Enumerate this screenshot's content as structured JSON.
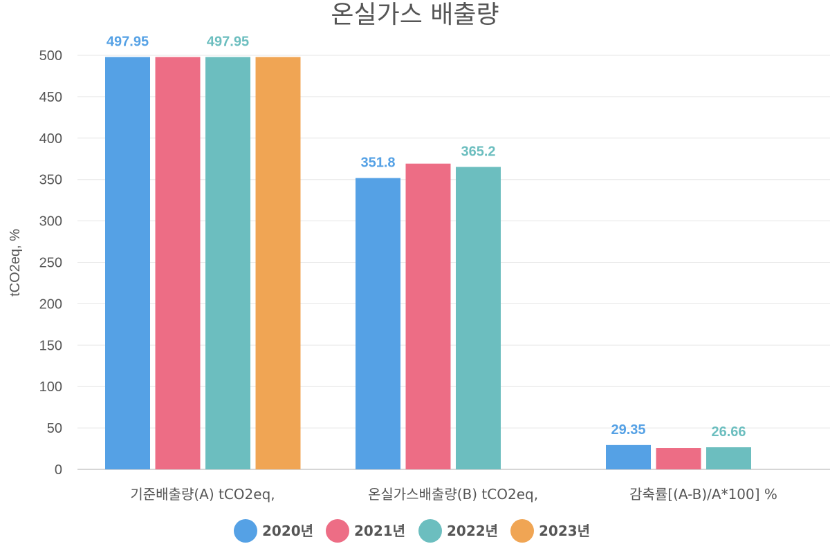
{
  "chart_data": {
    "type": "bar",
    "title": "온실가스 배출량",
    "ylabel": "tCO2eq, %",
    "xlabel": "",
    "ylim": [
      0,
      500
    ],
    "yticks": [
      0,
      50,
      100,
      150,
      200,
      250,
      300,
      350,
      400,
      450,
      500
    ],
    "grid": true,
    "legend_position": "bottom",
    "categories": [
      "기준배출량(A) tCO2eq,",
      "온실가스배출량(B) tCO2eq,",
      "감축률[(A-B)/A*100] %"
    ],
    "series": [
      {
        "name": "2020년",
        "color": "#55a1e5",
        "values": [
          497.95,
          351.8,
          29.35
        ],
        "labels": [
          "497.95",
          "351.8",
          "29.35"
        ]
      },
      {
        "name": "2021년",
        "color": "#ed6d85",
        "values": [
          497.95,
          369.2,
          25.86
        ],
        "labels": [
          null,
          null,
          null
        ]
      },
      {
        "name": "2022년",
        "color": "#6cbebf",
        "values": [
          497.95,
          365.2,
          26.66
        ],
        "labels": [
          "497.95",
          "365.2",
          "26.66"
        ]
      },
      {
        "name": "2023년",
        "color": "#f0a554",
        "values": [
          497.95,
          null,
          null
        ],
        "labels": [
          null,
          null,
          null
        ]
      }
    ],
    "gridline_color": "#e6e6e6",
    "axis_color": "#c8c8c8"
  }
}
